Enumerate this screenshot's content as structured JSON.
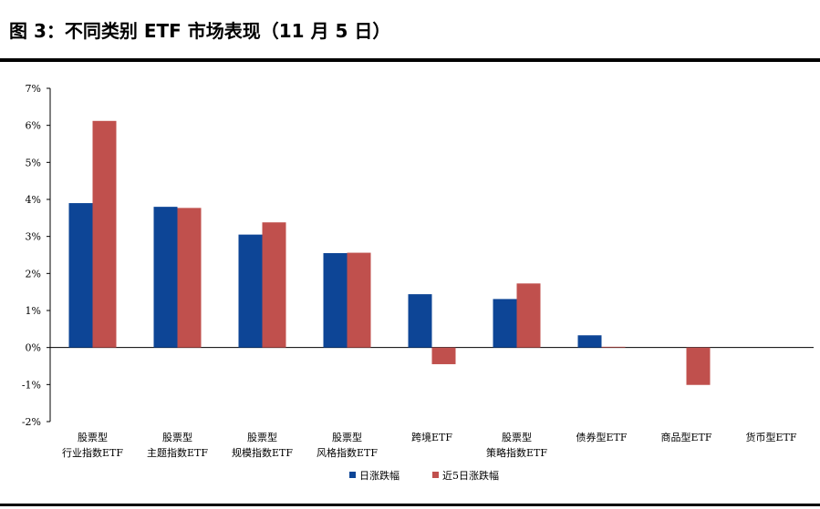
{
  "figure": {
    "title": "图 3：不同类别 ETF 市场表现（11 月 5 日）"
  },
  "colors": {
    "series1": "#0d4596",
    "series2": "#c0504d",
    "axis": "#000000"
  },
  "chart_data": {
    "type": "bar",
    "title": "",
    "xlabel": "",
    "ylabel": "",
    "ylim": [
      -2,
      7
    ],
    "yticks": [
      "-2%",
      "-1%",
      "0%",
      "1%",
      "2%",
      "3%",
      "4%",
      "5%",
      "6%",
      "7%"
    ],
    "grid": false,
    "legend_position": "bottom",
    "categories": [
      [
        "股票型",
        "行业指数ETF"
      ],
      [
        "股票型",
        "主题指数ETF"
      ],
      [
        "股票型",
        "规模指数ETF"
      ],
      [
        "股票型",
        "风格指数ETF"
      ],
      [
        "跨境ETF"
      ],
      [
        "股票型",
        "策略指数ETF"
      ],
      [
        "债券型ETF"
      ],
      [
        "商品型ETF"
      ],
      [
        "货币型ETF"
      ]
    ],
    "series": [
      {
        "name": "日涨跌幅",
        "values": [
          3.9,
          3.8,
          3.05,
          2.55,
          1.44,
          1.31,
          0.33,
          0.0,
          0.0
        ]
      },
      {
        "name": "近5日涨跌幅",
        "values": [
          6.12,
          3.77,
          3.38,
          2.56,
          -0.45,
          1.73,
          0.02,
          -1.01,
          0.0
        ]
      }
    ]
  }
}
